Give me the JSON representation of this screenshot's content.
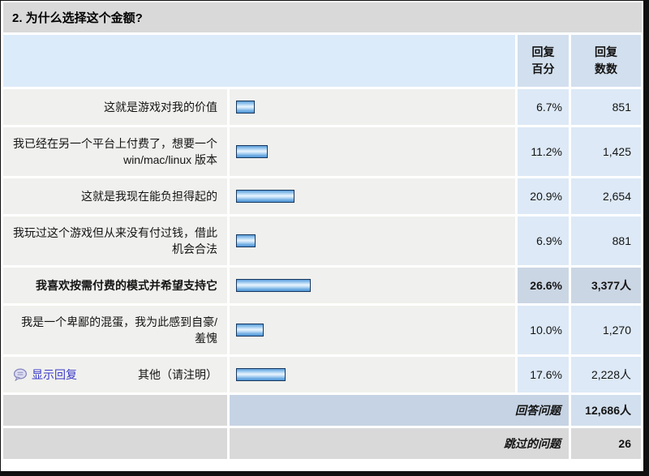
{
  "page": {
    "title": "2. 为什么选择这个金额?"
  },
  "table": {
    "headers": {
      "percent": "回复\n百分",
      "count": "回复\n数数"
    },
    "rows": [
      {
        "label": "这就是游戏对我的价值",
        "percent": "6.7%",
        "percent_value": 6.7,
        "count": "851",
        "emphasis": false,
        "show_replies_link": null
      },
      {
        "label": "我已经在另一个平台上付费了，想要一个 win/mac/linux 版本",
        "percent": "11.2%",
        "percent_value": 11.2,
        "count": "1,425",
        "emphasis": false,
        "show_replies_link": null
      },
      {
        "label": "这就是我现在能负担得起的",
        "percent": "20.9%",
        "percent_value": 20.9,
        "count": "2,654",
        "emphasis": false,
        "show_replies_link": null
      },
      {
        "label": "我玩过这个游戏但从来没有付过钱，借此机会合法",
        "percent": "6.9%",
        "percent_value": 6.9,
        "count": "881",
        "emphasis": false,
        "show_replies_link": null
      },
      {
        "label": "我喜欢按需付费的模式并希望支持它",
        "percent": "26.6%",
        "percent_value": 26.6,
        "count": "3,377人",
        "emphasis": true,
        "show_replies_link": null
      },
      {
        "label": "我是一个卑鄙的混蛋，我为此感到自豪/羞愧",
        "percent": "10.0%",
        "percent_value": 10.0,
        "count": "1,270",
        "emphasis": false,
        "show_replies_link": null
      },
      {
        "label": "其他（请注明）",
        "percent": "17.6%",
        "percent_value": 17.6,
        "count": "2,228人",
        "emphasis": false,
        "show_replies_link": "显示回复"
      }
    ],
    "footer": [
      {
        "label": "回答问题",
        "value": "12,686人"
      },
      {
        "label": "跳过的问题",
        "value": "26"
      }
    ]
  },
  "colors": {
    "link": "#3a3ac8",
    "bar_border": "#17375d",
    "bar_fill_top": "#5a9dda",
    "bar_fill_mid": "#eaf5fe",
    "bar_fill_bottom": "#4f96d8",
    "highlight_cell": "#cbd6e4",
    "header_cell": "#d2dfee",
    "data_cell_blue": "#dde9f6",
    "row_cell_gray": "#f0f0ee",
    "title_bar_gray": "#d9d9d9"
  },
  "icons": {
    "show_replies": "speech-bubble-icon"
  }
}
